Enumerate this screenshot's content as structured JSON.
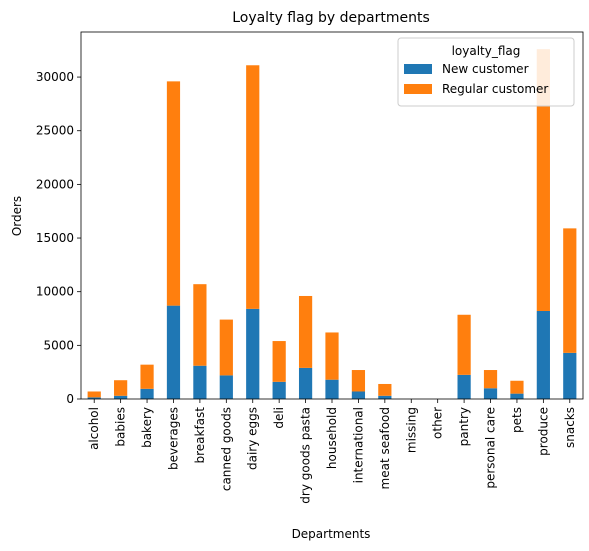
{
  "chart_data": {
    "type": "bar",
    "stacked": true,
    "title": "Loyalty flag by departments",
    "xlabel": "Departments",
    "ylabel": "Orders",
    "ylim": [
      0,
      34200
    ],
    "yticks": [
      0,
      5000,
      10000,
      15000,
      20000,
      25000,
      30000
    ],
    "grid": false,
    "legend": {
      "title": "loyalty_flag",
      "placement": "top-right"
    },
    "categories": [
      "alcohol",
      "babies",
      "bakery",
      "beverages",
      "breakfast",
      "canned goods",
      "dairy eggs",
      "deli",
      "dry goods pasta",
      "household",
      "international",
      "meat seafood",
      "missing",
      "other",
      "pantry",
      "personal care",
      "pets",
      "produce",
      "snacks"
    ],
    "series": [
      {
        "name": "New customer",
        "color": "#1f77b4",
        "values": [
          150,
          300,
          950,
          8700,
          3100,
          2200,
          8400,
          1600,
          2900,
          1800,
          700,
          300,
          0,
          0,
          2250,
          1000,
          500,
          8200,
          4300
        ]
      },
      {
        "name": "Regular customer",
        "color": "#ff7f0e",
        "values": [
          550,
          1450,
          2250,
          20900,
          7600,
          5200,
          22700,
          3800,
          6700,
          4400,
          2000,
          1100,
          0,
          0,
          5600,
          1700,
          1200,
          24400,
          11600
        ]
      }
    ]
  }
}
